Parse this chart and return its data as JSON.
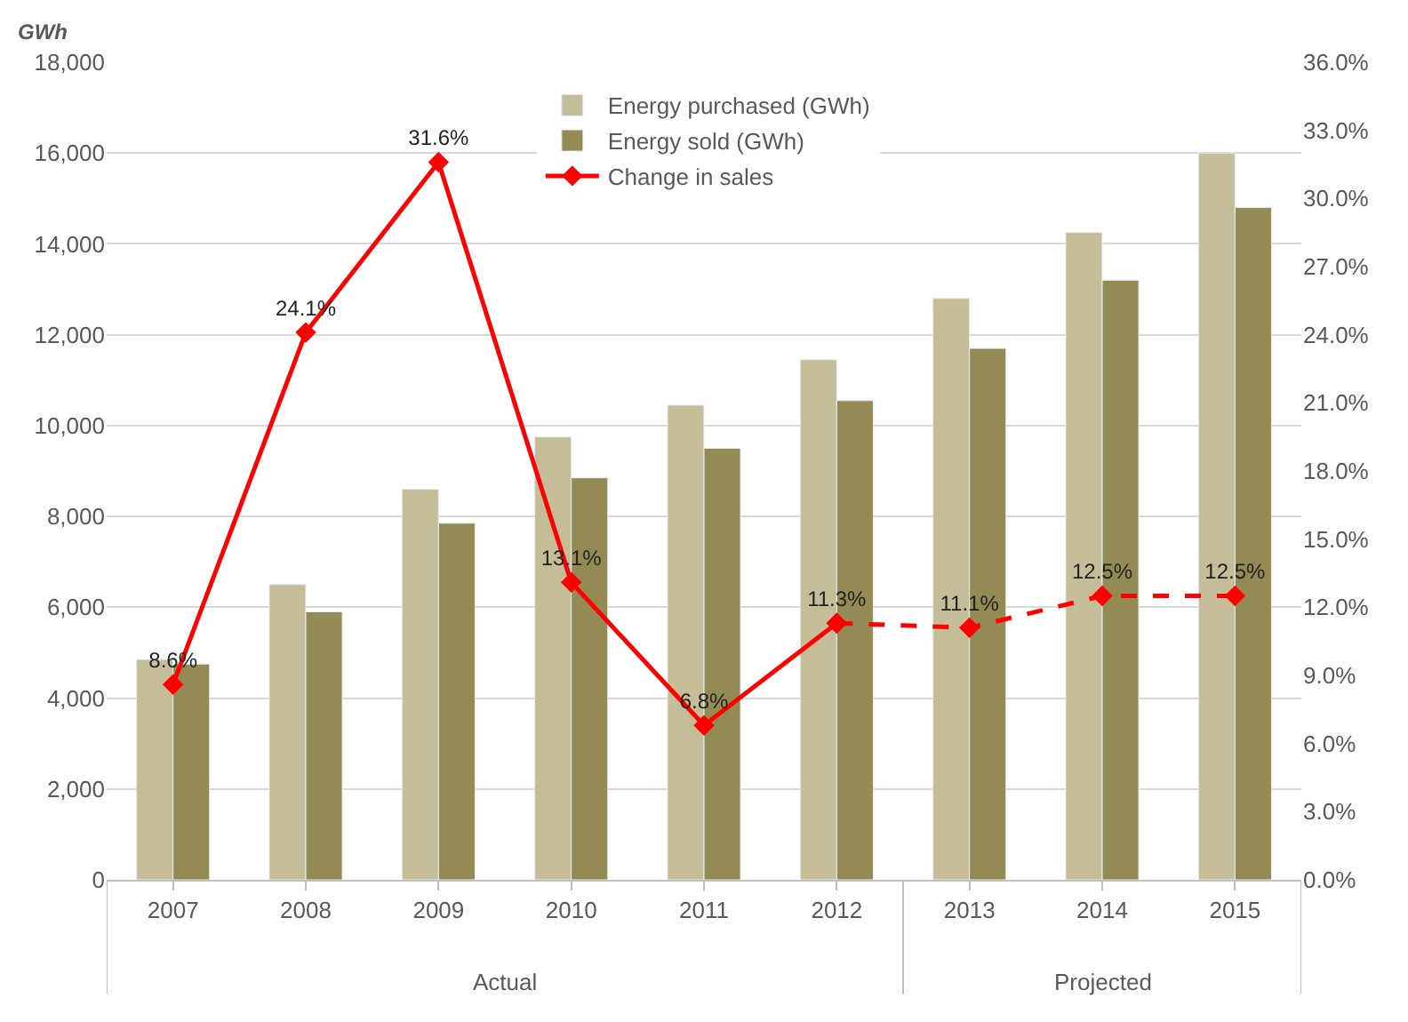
{
  "chart_data": {
    "type": "bar",
    "ylabel": "GWh",
    "categories": [
      "2007",
      "2008",
      "2009",
      "2010",
      "2011",
      "2012",
      "2013",
      "2014",
      "2015"
    ],
    "series": [
      {
        "name": "Energy purchased (GWh)",
        "color": "#c4bd97",
        "values": [
          4850,
          6500,
          8600,
          9750,
          10450,
          11450,
          12800,
          14250,
          16000
        ]
      },
      {
        "name": "Energy sold (GWh)",
        "color": "#948a54",
        "values": [
          4750,
          5900,
          7850,
          8850,
          9500,
          10550,
          11700,
          13200,
          14800
        ]
      },
      {
        "name": "Change in sales",
        "type": "line",
        "axis": "y2",
        "color": "#ff0000",
        "marker": "diamond",
        "line_style": "solid",
        "values": [
          8.6,
          24.1,
          31.6,
          13.1,
          6.8,
          11.3,
          null,
          null,
          null
        ],
        "value_labels": [
          "8.6%",
          "24.1%",
          "31.6%",
          "13.1%",
          "6.8%",
          "11.3%",
          null,
          null,
          null
        ]
      },
      {
        "type": "line",
        "axis": "y2",
        "color": "#ff0000",
        "marker": "diamond",
        "line_style": "dashed",
        "values": [
          null,
          null,
          null,
          null,
          null,
          11.3,
          11.1,
          12.5,
          12.5
        ],
        "value_labels": [
          null,
          null,
          null,
          null,
          null,
          null,
          "11.1%",
          "12.5%",
          "12.5%"
        ]
      }
    ],
    "ylim": [
      0,
      18000
    ],
    "yticks": [
      {
        "value": 0,
        "label": "0"
      },
      {
        "value": 2000,
        "label": "2,000"
      },
      {
        "value": 4000,
        "label": "4,000"
      },
      {
        "value": 6000,
        "label": "6,000"
      },
      {
        "value": 8000,
        "label": "8,000"
      },
      {
        "value": 10000,
        "label": "10,000"
      },
      {
        "value": 12000,
        "label": "12,000"
      },
      {
        "value": 14000,
        "label": "14,000"
      },
      {
        "value": 16000,
        "label": "16,000"
      },
      {
        "value": 18000,
        "label": "18,000"
      }
    ],
    "y2lim": [
      0,
      36
    ],
    "y2ticks": [
      {
        "value": 0,
        "label": "0.0%"
      },
      {
        "value": 3,
        "label": "3.0%"
      },
      {
        "value": 6,
        "label": "6.0%"
      },
      {
        "value": 9,
        "label": "9.0%"
      },
      {
        "value": 12,
        "label": "12.0%"
      },
      {
        "value": 15,
        "label": "15.0%"
      },
      {
        "value": 18,
        "label": "18.0%"
      },
      {
        "value": 21,
        "label": "21.0%"
      },
      {
        "value": 24,
        "label": "24.0%"
      },
      {
        "value": 27,
        "label": "27.0%"
      },
      {
        "value": 30,
        "label": "30.0%"
      },
      {
        "value": 33,
        "label": "33.0%"
      },
      {
        "value": 36,
        "label": "36.0%"
      }
    ],
    "annotations": [
      "Actual",
      "Projected"
    ],
    "grid": "y",
    "legend": "top"
  }
}
